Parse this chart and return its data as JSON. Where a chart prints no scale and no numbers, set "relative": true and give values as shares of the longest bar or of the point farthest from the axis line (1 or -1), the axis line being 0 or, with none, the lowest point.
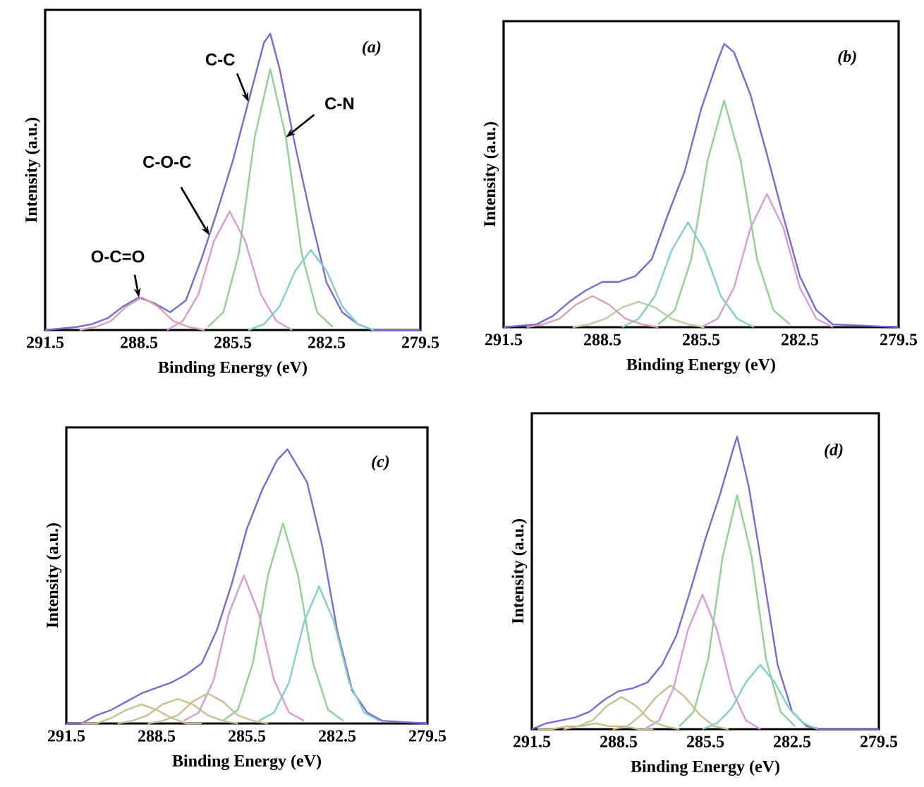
{
  "chart_data": [
    {
      "type": "line",
      "xlabel": "Binding Energy (eV)",
      "ylabel": "Intensity (a.u.)",
      "xlim": [
        291.5,
        279.5
      ],
      "xticks": [
        291.5,
        288.5,
        285.5,
        282.5,
        279.5
      ],
      "relative": true,
      "marker": "none",
      "annotations": [
        "(a)",
        {
          "text": "C-C",
          "x": 285.0,
          "y": 0.77
        },
        {
          "text": "C-N",
          "x": 283.8,
          "y": 0.65
        },
        {
          "text": "C-O-C",
          "x": 286.25,
          "y": 0.32
        },
        {
          "text": "O-C=O",
          "x": 288.5,
          "y": 0.11
        }
      ],
      "series": [
        {
          "color": "#7b68d8",
          "x": [
            291.5,
            290.5,
            290,
            289.5,
            289,
            288.5,
            288,
            287.5,
            287,
            286.5,
            286,
            285.5,
            285,
            284.5,
            284.3,
            284,
            283.5,
            283,
            282.5,
            282,
            281.5,
            281,
            279.5
          ],
          "values": [
            0,
            0.01,
            0.02,
            0.04,
            0.08,
            0.11,
            0.09,
            0.06,
            0.1,
            0.24,
            0.4,
            0.57,
            0.77,
            0.97,
            1.0,
            0.88,
            0.62,
            0.38,
            0.16,
            0.06,
            0.02,
            0,
            0
          ]
        },
        {
          "color": "#8fd18f",
          "x": [
            286.3,
            285.8,
            285.3,
            284.8,
            284.3,
            283.8,
            283.3,
            282.8,
            282.3
          ],
          "values": [
            0.01,
            0.06,
            0.26,
            0.65,
            0.88,
            0.65,
            0.26,
            0.06,
            0.01
          ]
        },
        {
          "color": "#d99ad9",
          "x": [
            287.6,
            287.1,
            286.6,
            286.1,
            285.6,
            285.1,
            284.6,
            284.1,
            283.6
          ],
          "values": [
            0,
            0.03,
            0.12,
            0.3,
            0.4,
            0.3,
            0.12,
            0.03,
            0
          ]
        },
        {
          "color": "#7fd0c8",
          "x": [
            285.0,
            284.5,
            284.0,
            283.5,
            283.0,
            282.5,
            282.0,
            281.5,
            281.0
          ],
          "values": [
            0,
            0.02,
            0.08,
            0.2,
            0.27,
            0.2,
            0.08,
            0.02,
            0
          ]
        },
        {
          "color": "#d8a0b0",
          "x": [
            290.4,
            289.9,
            289.4,
            288.9,
            288.4,
            287.9,
            287.4,
            286.9,
            286.4
          ],
          "values": [
            0,
            0.01,
            0.03,
            0.08,
            0.11,
            0.08,
            0.03,
            0.01,
            0
          ]
        }
      ]
    },
    {
      "type": "line",
      "xlabel": "Binding Energy (eV)",
      "ylabel": "Intensity (a.u.)",
      "xlim": [
        291.5,
        279.5
      ],
      "xticks": [
        291.5,
        288.5,
        285.5,
        282.5,
        279.5
      ],
      "relative": true,
      "marker": "none",
      "annotations": [
        "(b)"
      ],
      "series": [
        {
          "color": "#7b68d8",
          "x": [
            291.5,
            290.5,
            290,
            289.5,
            289,
            288.5,
            288,
            287.5,
            287,
            286.5,
            286,
            285.5,
            285,
            284.8,
            284.5,
            284,
            283.5,
            283,
            282.5,
            282,
            281.5,
            279.5
          ],
          "values": [
            0,
            0.01,
            0.04,
            0.09,
            0.13,
            0.16,
            0.16,
            0.18,
            0.24,
            0.4,
            0.55,
            0.77,
            0.94,
            1.0,
            0.97,
            0.82,
            0.61,
            0.39,
            0.18,
            0.06,
            0.01,
            0
          ]
        },
        {
          "color": "#8fd18f",
          "x": [
            286.8,
            286.3,
            285.8,
            285.3,
            284.8,
            284.3,
            283.8,
            283.3,
            282.8
          ],
          "values": [
            0.01,
            0.06,
            0.24,
            0.59,
            0.8,
            0.59,
            0.24,
            0.06,
            0.01
          ]
        },
        {
          "color": "#d99ad9",
          "x": [
            285.5,
            285.0,
            284.5,
            284.0,
            283.5,
            283.0,
            282.5,
            282.0,
            281.5
          ],
          "values": [
            0,
            0.03,
            0.14,
            0.35,
            0.47,
            0.35,
            0.14,
            0.03,
            0
          ]
        },
        {
          "color": "#7fd0c8",
          "x": [
            287.9,
            287.4,
            286.9,
            286.4,
            285.9,
            285.4,
            284.9,
            284.4,
            283.9
          ],
          "values": [
            0,
            0.03,
            0.11,
            0.27,
            0.37,
            0.27,
            0.11,
            0.03,
            0
          ]
        },
        {
          "color": "#b8d0a0",
          "x": [
            289.4,
            288.9,
            288.4,
            287.9,
            287.4,
            286.9,
            286.4,
            285.9,
            285.4
          ],
          "values": [
            0,
            0.01,
            0.03,
            0.07,
            0.09,
            0.07,
            0.03,
            0.01,
            0
          ]
        },
        {
          "color": "#d8a0b0",
          "x": [
            290.8,
            290.3,
            289.8,
            289.3,
            288.8,
            288.3,
            287.8,
            287.3,
            286.8
          ],
          "values": [
            0,
            0.01,
            0.03,
            0.08,
            0.11,
            0.08,
            0.03,
            0.01,
            0
          ]
        }
      ]
    },
    {
      "type": "line",
      "xlabel": "Binding Energy (eV)",
      "ylabel": "Intensity (a.u.)",
      "xlim": [
        291.5,
        279.5
      ],
      "xticks": [
        291.5,
        288.5,
        285.5,
        282.5,
        279.5
      ],
      "relative": true,
      "marker": "none",
      "annotations": [
        "(c)"
      ],
      "series": [
        {
          "color": "#7b68d8",
          "x": [
            291.5,
            291,
            290.5,
            290,
            289.5,
            289,
            288.5,
            288,
            287.5,
            287,
            286.5,
            286,
            285.5,
            285,
            284.5,
            284.15,
            283.5,
            283,
            282.5,
            282,
            281.5,
            281,
            279.5
          ],
          "values": [
            0,
            0,
            0.03,
            0.05,
            0.08,
            0.11,
            0.13,
            0.15,
            0.18,
            0.22,
            0.34,
            0.51,
            0.71,
            0.85,
            0.96,
            1.0,
            0.88,
            0.65,
            0.34,
            0.12,
            0.04,
            0.01,
            0
          ]
        },
        {
          "color": "#8fd18f",
          "x": [
            286.3,
            285.8,
            285.3,
            284.8,
            284.3,
            283.8,
            283.3,
            282.8,
            282.3
          ],
          "values": [
            0.01,
            0.05,
            0.22,
            0.54,
            0.73,
            0.54,
            0.22,
            0.05,
            0.01
          ]
        },
        {
          "color": "#d99ad9",
          "x": [
            287.6,
            287.1,
            286.6,
            286.1,
            285.6,
            285.1,
            284.6,
            284.1,
            283.6
          ],
          "values": [
            0.01,
            0.04,
            0.16,
            0.4,
            0.54,
            0.4,
            0.16,
            0.04,
            0.01
          ]
        },
        {
          "color": "#7fd0c8",
          "x": [
            285.1,
            284.6,
            284.1,
            283.6,
            283.1,
            282.6,
            282.1,
            281.6,
            281.1
          ],
          "values": [
            0.01,
            0.04,
            0.15,
            0.37,
            0.5,
            0.37,
            0.15,
            0.04,
            0.01
          ]
        },
        {
          "color": "#c8c090",
          "x": [
            291.0,
            290.5,
            290.0,
            289.5,
            289.0,
            288.5,
            288.0,
            287.5,
            287.0
          ],
          "values": [
            0,
            0,
            0.02,
            0.05,
            0.07,
            0.05,
            0.02,
            0,
            0
          ]
        },
        {
          "color": "#c8c090",
          "x": [
            289.8,
            289.3,
            288.8,
            288.3,
            287.8,
            287.3,
            286.8,
            286.3,
            285.8
          ],
          "values": [
            0,
            0.01,
            0.03,
            0.07,
            0.09,
            0.07,
            0.03,
            0.01,
            0
          ]
        },
        {
          "color": "#c8c090",
          "x": [
            288.8,
            288.3,
            287.8,
            287.3,
            286.8,
            286.3,
            285.8,
            285.3,
            284.8
          ],
          "values": [
            0,
            0.01,
            0.03,
            0.08,
            0.11,
            0.08,
            0.03,
            0.01,
            0
          ]
        }
      ]
    },
    {
      "type": "line",
      "xlabel": "Binding Energy (eV)",
      "ylabel": "Intensity (a.u.)",
      "xlim": [
        291.5,
        279.5
      ],
      "xticks": [
        291.5,
        288.5,
        285.5,
        282.5,
        279.5
      ],
      "relative": true,
      "marker": "none",
      "annotations": [
        "(d)"
      ],
      "series": [
        {
          "color": "#7b68d8",
          "x": [
            291.5,
            291,
            290.5,
            290,
            289.5,
            289,
            288.5,
            288,
            287.5,
            287,
            286.5,
            286,
            285.5,
            285,
            284.5,
            284.4,
            284,
            283.5,
            283,
            282.5,
            282,
            281.5,
            279.5
          ],
          "values": [
            0,
            0.02,
            0.03,
            0.04,
            0.06,
            0.1,
            0.13,
            0.14,
            0.16,
            0.22,
            0.32,
            0.48,
            0.65,
            0.8,
            0.97,
            1.0,
            0.83,
            0.53,
            0.22,
            0.06,
            0.01,
            0,
            0
          ]
        },
        {
          "color": "#8fd18f",
          "x": [
            286.4,
            285.9,
            285.4,
            284.9,
            284.4,
            283.9,
            283.4,
            282.9,
            282.4
          ],
          "values": [
            0.01,
            0.06,
            0.24,
            0.59,
            0.8,
            0.59,
            0.24,
            0.06,
            0.01
          ]
        },
        {
          "color": "#d99ad9",
          "x": [
            287.6,
            287.1,
            286.6,
            286.1,
            285.6,
            285.1,
            284.6,
            284.1,
            283.6
          ],
          "values": [
            0,
            0.03,
            0.14,
            0.34,
            0.46,
            0.34,
            0.14,
            0.03,
            0
          ]
        },
        {
          "color": "#7fd0c8",
          "x": [
            285.6,
            285.1,
            284.6,
            284.1,
            283.6,
            283.1,
            282.6,
            282.1,
            281.6
          ],
          "values": [
            0,
            0.02,
            0.07,
            0.16,
            0.22,
            0.16,
            0.07,
            0.02,
            0
          ]
        },
        {
          "color": "#c8c090",
          "x": [
            288.7,
            288.2,
            287.7,
            287.2,
            286.7,
            286.2,
            285.7,
            285.2,
            284.7
          ],
          "values": [
            0,
            0.01,
            0.05,
            0.11,
            0.15,
            0.11,
            0.05,
            0.01,
            0
          ]
        },
        {
          "color": "#c8c090",
          "x": [
            290.4,
            289.9,
            289.4,
            288.9,
            288.4,
            287.9,
            287.4,
            286.9,
            286.4
          ],
          "values": [
            0,
            0.01,
            0.03,
            0.08,
            0.11,
            0.08,
            0.03,
            0.01,
            0
          ]
        },
        {
          "color": "#c8c090",
          "x": [
            291.3,
            290.8,
            290.3,
            289.8,
            289.3,
            288.8,
            288.3,
            287.8,
            287.3
          ],
          "values": [
            0,
            0,
            0.01,
            0.01,
            0.02,
            0.01,
            0.01,
            0,
            0
          ]
        }
      ]
    }
  ]
}
